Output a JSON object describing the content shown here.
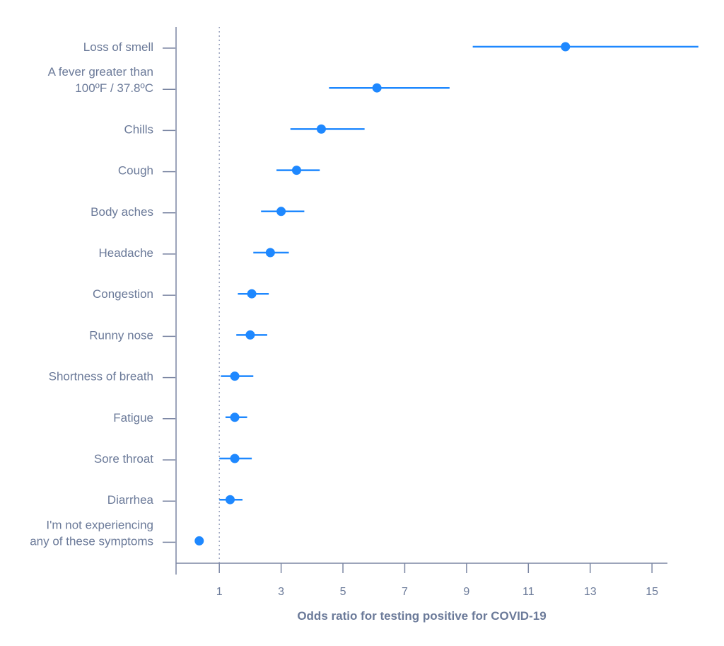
{
  "chart_data": {
    "type": "scatter",
    "subtype": "forest-plot",
    "title": "",
    "xlabel": "Odds ratio for testing positive for COVID-19",
    "ylabel": "",
    "xlim": [
      -0.4,
      15.5
    ],
    "xticks": [
      1,
      3,
      5,
      7,
      9,
      11,
      13,
      15
    ],
    "xtick_labels": [
      "1",
      "3",
      "5",
      "7",
      "9",
      "11",
      "13",
      "15"
    ],
    "reference_line": {
      "x": 1,
      "style": "dotted"
    },
    "categories": [
      [
        "Loss of smell"
      ],
      [
        "A fever greater than",
        "100ºF / 37.8ºC"
      ],
      [
        "Chills"
      ],
      [
        "Cough"
      ],
      [
        "Body aches"
      ],
      [
        "Headache"
      ],
      [
        "Congestion"
      ],
      [
        "Runny nose"
      ],
      [
        "Shortness of breath"
      ],
      [
        "Fatigue"
      ],
      [
        "Sore throat"
      ],
      [
        "Diarrhea"
      ],
      [
        "I'm not experiencing",
        "any of these symptoms"
      ]
    ],
    "estimates": [
      12.2,
      6.1,
      4.3,
      3.5,
      3.0,
      2.65,
      2.05,
      2.0,
      1.5,
      1.5,
      1.5,
      1.35,
      0.35
    ],
    "ci_lower": [
      9.2,
      4.55,
      3.3,
      2.85,
      2.35,
      2.1,
      1.6,
      1.55,
      1.05,
      1.2,
      1.0,
      1.0,
      null
    ],
    "ci_upper": [
      16.5,
      8.45,
      5.7,
      4.25,
      3.75,
      3.25,
      2.6,
      2.55,
      2.1,
      1.9,
      2.05,
      1.75,
      null
    ],
    "grid": false,
    "legend": "none",
    "colors": {
      "point": "#1e88ff",
      "axis": "#7b86a3",
      "text": "#6b7a99",
      "reference": "#9aa3bf"
    }
  }
}
